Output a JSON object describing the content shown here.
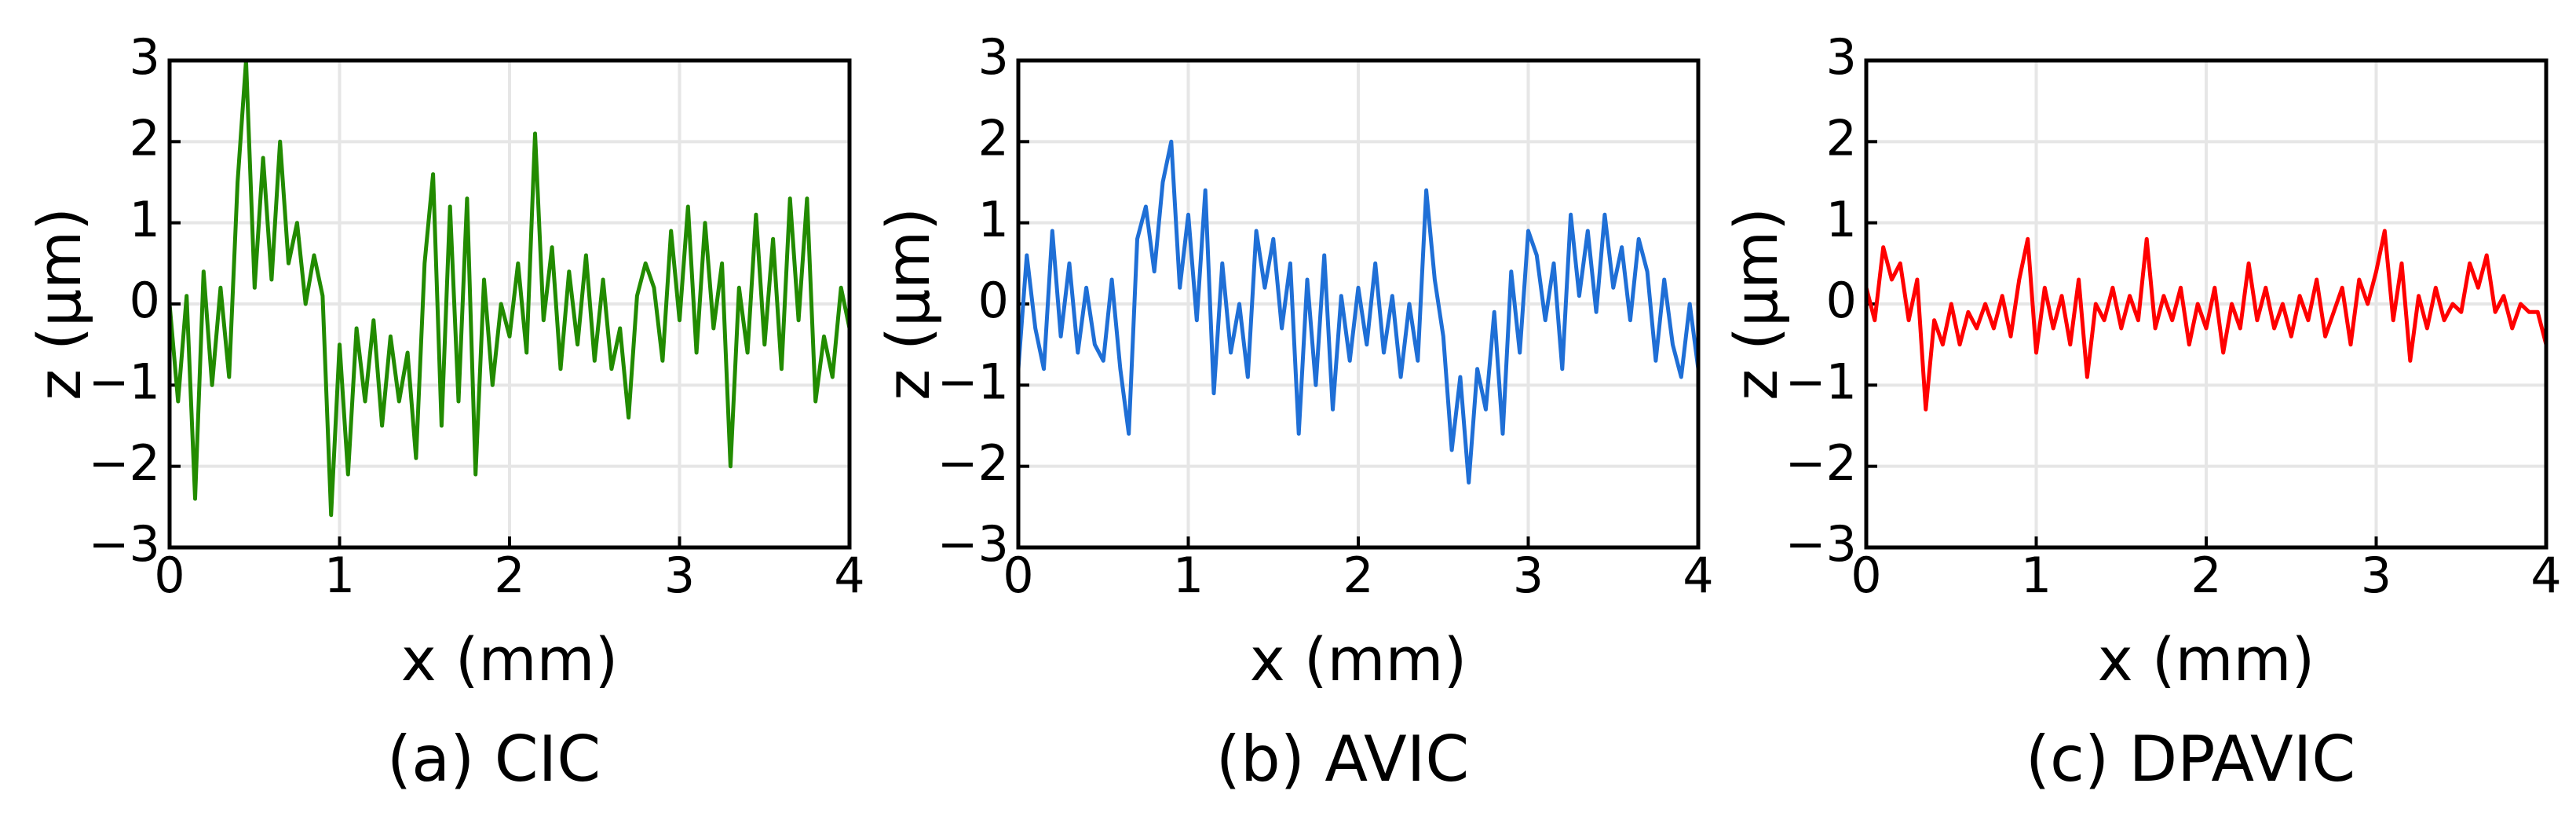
{
  "chart_data": [
    {
      "type": "line",
      "caption": "(a) CIC",
      "xlabel": "x (mm)",
      "ylabel": "z (μm)",
      "grid": true,
      "xlim": [
        0,
        4
      ],
      "ylim": [
        -3,
        3
      ],
      "xticks": [
        0,
        1,
        2,
        3,
        4
      ],
      "yticks": [
        {
          "value": -3,
          "label": "−3"
        },
        {
          "value": -2,
          "label": "−2"
        },
        {
          "value": -1,
          "label": "−1"
        },
        0,
        1,
        2,
        3
      ],
      "x": [
        0,
        0.05,
        0.1,
        0.15,
        0.2,
        0.25,
        0.3,
        0.35,
        0.4,
        0.45,
        0.5,
        0.55,
        0.6,
        0.65,
        0.7,
        0.75,
        0.8,
        0.85,
        0.9,
        0.95,
        1,
        1.05,
        1.1,
        1.15,
        1.2,
        1.25,
        1.3,
        1.35,
        1.4,
        1.45,
        1.5,
        1.55,
        1.6,
        1.65,
        1.7,
        1.75,
        1.8,
        1.85,
        1.9,
        1.95,
        2,
        2.05,
        2.1,
        2.15,
        2.2,
        2.25,
        2.3,
        2.35,
        2.4,
        2.45,
        2.5,
        2.55,
        2.6,
        2.65,
        2.7,
        2.75,
        2.8,
        2.85,
        2.9,
        2.95,
        3,
        3.05,
        3.1,
        3.15,
        3.2,
        3.25,
        3.3,
        3.35,
        3.4,
        3.45,
        3.5,
        3.55,
        3.6,
        3.65,
        3.7,
        3.75,
        3.8,
        3.85,
        3.9,
        3.95,
        4
      ],
      "series": [
        {
          "color": "#228b00",
          "values": [
            0,
            -1.2,
            0.1,
            -2.4,
            0.4,
            -1.0,
            0.2,
            -0.9,
            1.5,
            3.0,
            0.2,
            1.8,
            0.3,
            2.0,
            0.5,
            1.0,
            0.0,
            0.6,
            0.1,
            -2.6,
            -0.5,
            -2.1,
            -0.3,
            -1.2,
            -0.2,
            -1.5,
            -0.4,
            -1.2,
            -0.6,
            -1.9,
            0.5,
            1.6,
            -1.5,
            1.2,
            -1.2,
            1.3,
            -2.1,
            0.3,
            -1.0,
            0.0,
            -0.4,
            0.5,
            -0.6,
            2.1,
            -0.2,
            0.7,
            -0.8,
            0.4,
            -0.5,
            0.6,
            -0.7,
            0.3,
            -0.8,
            -0.3,
            -1.4,
            0.1,
            0.5,
            0.2,
            -0.7,
            0.9,
            -0.2,
            1.2,
            -0.6,
            1.0,
            -0.3,
            0.5,
            -2.0,
            0.2,
            -0.6,
            1.1,
            -0.5,
            0.8,
            -0.8,
            1.3,
            -0.2,
            1.3,
            -1.2,
            -0.4,
            -0.9,
            0.2,
            -0.3
          ]
        }
      ]
    },
    {
      "type": "line",
      "caption": "(b) AVIC",
      "xlabel": "x (mm)",
      "ylabel": "z (μm)",
      "grid": true,
      "xlim": [
        0,
        4
      ],
      "ylim": [
        -3,
        3
      ],
      "xticks": [
        0,
        1,
        2,
        3,
        4
      ],
      "yticks": [
        {
          "value": -3,
          "label": "−3"
        },
        {
          "value": -2,
          "label": "−2"
        },
        {
          "value": -1,
          "label": "−1"
        },
        0,
        1,
        2,
        3
      ],
      "x": [
        0,
        0.05,
        0.1,
        0.15,
        0.2,
        0.25,
        0.3,
        0.35,
        0.4,
        0.45,
        0.5,
        0.55,
        0.6,
        0.65,
        0.7,
        0.75,
        0.8,
        0.85,
        0.9,
        0.95,
        1,
        1.05,
        1.1,
        1.15,
        1.2,
        1.25,
        1.3,
        1.35,
        1.4,
        1.45,
        1.5,
        1.55,
        1.6,
        1.65,
        1.7,
        1.75,
        1.8,
        1.85,
        1.9,
        1.95,
        2,
        2.05,
        2.1,
        2.15,
        2.2,
        2.25,
        2.3,
        2.35,
        2.4,
        2.45,
        2.5,
        2.55,
        2.6,
        2.65,
        2.7,
        2.75,
        2.8,
        2.85,
        2.9,
        2.95,
        3,
        3.05,
        3.1,
        3.15,
        3.2,
        3.25,
        3.3,
        3.35,
        3.4,
        3.45,
        3.5,
        3.55,
        3.6,
        3.65,
        3.7,
        3.75,
        3.8,
        3.85,
        3.9,
        3.95,
        4
      ],
      "series": [
        {
          "color": "#1f6fd6",
          "values": [
            -0.8,
            0.6,
            -0.3,
            -0.8,
            0.9,
            -0.4,
            0.5,
            -0.6,
            0.2,
            -0.5,
            -0.7,
            0.3,
            -0.8,
            -1.6,
            0.8,
            1.2,
            0.4,
            1.5,
            2.0,
            0.2,
            1.1,
            -0.2,
            1.4,
            -1.1,
            0.5,
            -0.6,
            0.0,
            -0.9,
            0.9,
            0.2,
            0.8,
            -0.3,
            0.5,
            -1.6,
            0.3,
            -1.0,
            0.6,
            -1.3,
            0.1,
            -0.7,
            0.2,
            -0.5,
            0.5,
            -0.6,
            0.1,
            -0.9,
            0.0,
            -0.7,
            1.4,
            0.3,
            -0.4,
            -1.8,
            -0.9,
            -2.2,
            -0.8,
            -1.3,
            -0.1,
            -1.6,
            0.4,
            -0.6,
            0.9,
            0.6,
            -0.2,
            0.5,
            -0.8,
            1.1,
            0.1,
            0.9,
            -0.1,
            1.1,
            0.2,
            0.7,
            -0.2,
            0.8,
            0.4,
            -0.7,
            0.3,
            -0.5,
            -0.9,
            0.0,
            -0.8
          ]
        }
      ]
    },
    {
      "type": "line",
      "caption": "(c) DPAVIC",
      "xlabel": "x (mm)",
      "ylabel": "z (μm)",
      "grid": true,
      "xlim": [
        0,
        4
      ],
      "ylim": [
        -3,
        3
      ],
      "xticks": [
        0,
        1,
        2,
        3,
        4
      ],
      "yticks": [
        {
          "value": -3,
          "label": "−3"
        },
        {
          "value": -2,
          "label": "−2"
        },
        {
          "value": -1,
          "label": "−1"
        },
        0,
        1,
        2,
        3
      ],
      "x": [
        0,
        0.05,
        0.1,
        0.15,
        0.2,
        0.25,
        0.3,
        0.35,
        0.4,
        0.45,
        0.5,
        0.55,
        0.6,
        0.65,
        0.7,
        0.75,
        0.8,
        0.85,
        0.9,
        0.95,
        1,
        1.05,
        1.1,
        1.15,
        1.2,
        1.25,
        1.3,
        1.35,
        1.4,
        1.45,
        1.5,
        1.55,
        1.6,
        1.65,
        1.7,
        1.75,
        1.8,
        1.85,
        1.9,
        1.95,
        2,
        2.05,
        2.1,
        2.15,
        2.2,
        2.25,
        2.3,
        2.35,
        2.4,
        2.45,
        2.5,
        2.55,
        2.6,
        2.65,
        2.7,
        2.75,
        2.8,
        2.85,
        2.9,
        2.95,
        3,
        3.05,
        3.1,
        3.15,
        3.2,
        3.25,
        3.3,
        3.35,
        3.4,
        3.45,
        3.5,
        3.55,
        3.6,
        3.65,
        3.7,
        3.75,
        3.8,
        3.85,
        3.9,
        3.95,
        4
      ],
      "series": [
        {
          "color": "#ff0000",
          "values": [
            0.2,
            -0.2,
            0.7,
            0.3,
            0.5,
            -0.2,
            0.3,
            -1.3,
            -0.2,
            -0.5,
            0.0,
            -0.5,
            -0.1,
            -0.3,
            0.0,
            -0.3,
            0.1,
            -0.4,
            0.3,
            0.8,
            -0.6,
            0.2,
            -0.3,
            0.1,
            -0.5,
            0.3,
            -0.9,
            0.0,
            -0.2,
            0.2,
            -0.3,
            0.1,
            -0.2,
            0.8,
            -0.3,
            0.1,
            -0.2,
            0.2,
            -0.5,
            0.0,
            -0.3,
            0.2,
            -0.6,
            0.0,
            -0.3,
            0.5,
            -0.2,
            0.2,
            -0.3,
            0.0,
            -0.4,
            0.1,
            -0.2,
            0.3,
            -0.4,
            -0.1,
            0.2,
            -0.5,
            0.3,
            0.0,
            0.4,
            0.9,
            -0.2,
            0.5,
            -0.7,
            0.1,
            -0.3,
            0.2,
            -0.2,
            0.0,
            -0.1,
            0.5,
            0.2,
            0.6,
            -0.1,
            0.1,
            -0.3,
            0.0,
            -0.1,
            -0.1,
            -0.5
          ]
        }
      ]
    }
  ]
}
